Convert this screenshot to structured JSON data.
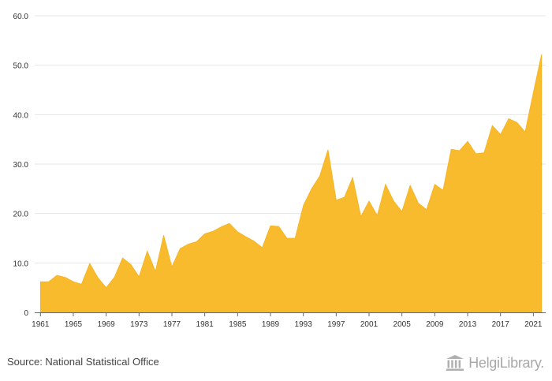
{
  "chart_data": {
    "type": "area",
    "title": "",
    "xlabel": "",
    "ylabel": "",
    "ylim": [
      0,
      60
    ],
    "y_ticks": [
      "0",
      "10.0",
      "20.0",
      "30.0",
      "40.0",
      "50.0",
      "60.0"
    ],
    "x_ticks": [
      "1961",
      "1965",
      "1969",
      "1973",
      "1977",
      "1981",
      "1985",
      "1989",
      "1993",
      "1997",
      "2001",
      "2005",
      "2009",
      "2013",
      "2017",
      "2021"
    ],
    "grid": true,
    "legend": "none",
    "color": "#F8BB2E",
    "x": [
      1961,
      1962,
      1963,
      1964,
      1965,
      1966,
      1967,
      1968,
      1969,
      1970,
      1971,
      1972,
      1973,
      1974,
      1975,
      1976,
      1977,
      1978,
      1979,
      1980,
      1981,
      1982,
      1983,
      1984,
      1985,
      1986,
      1987,
      1988,
      1989,
      1990,
      1991,
      1992,
      1993,
      1994,
      1995,
      1996,
      1997,
      1998,
      1999,
      2000,
      2001,
      2002,
      2003,
      2004,
      2005,
      2006,
      2007,
      2008,
      2009,
      2010,
      2011,
      2012,
      2013,
      2014,
      2015,
      2016,
      2017,
      2018,
      2019,
      2020,
      2021,
      2022
    ],
    "values": [
      6.2,
      6.2,
      7.5,
      7.1,
      6.2,
      5.7,
      9.9,
      7.0,
      5.0,
      7.1,
      11.0,
      9.7,
      7.2,
      12.4,
      8.3,
      15.6,
      9.2,
      12.9,
      13.8,
      14.3,
      15.9,
      16.4,
      17.3,
      18.0,
      16.3,
      15.3,
      14.4,
      13.1,
      17.5,
      17.4,
      15.0,
      15.0,
      21.6,
      25.0,
      27.6,
      32.9,
      22.7,
      23.3,
      27.3,
      19.4,
      22.5,
      19.6,
      25.9,
      22.5,
      20.4,
      25.7,
      22.1,
      20.8,
      25.9,
      24.7,
      33.0,
      32.7,
      34.6,
      32.1,
      32.3,
      37.8,
      36.0,
      39.2,
      38.4,
      36.5,
      44.5,
      52.2
    ]
  },
  "footer": {
    "source": "Source: National Statistical Office",
    "brand": "HelgiLibrary."
  },
  "icons": {
    "brand": "library-columns-icon"
  }
}
